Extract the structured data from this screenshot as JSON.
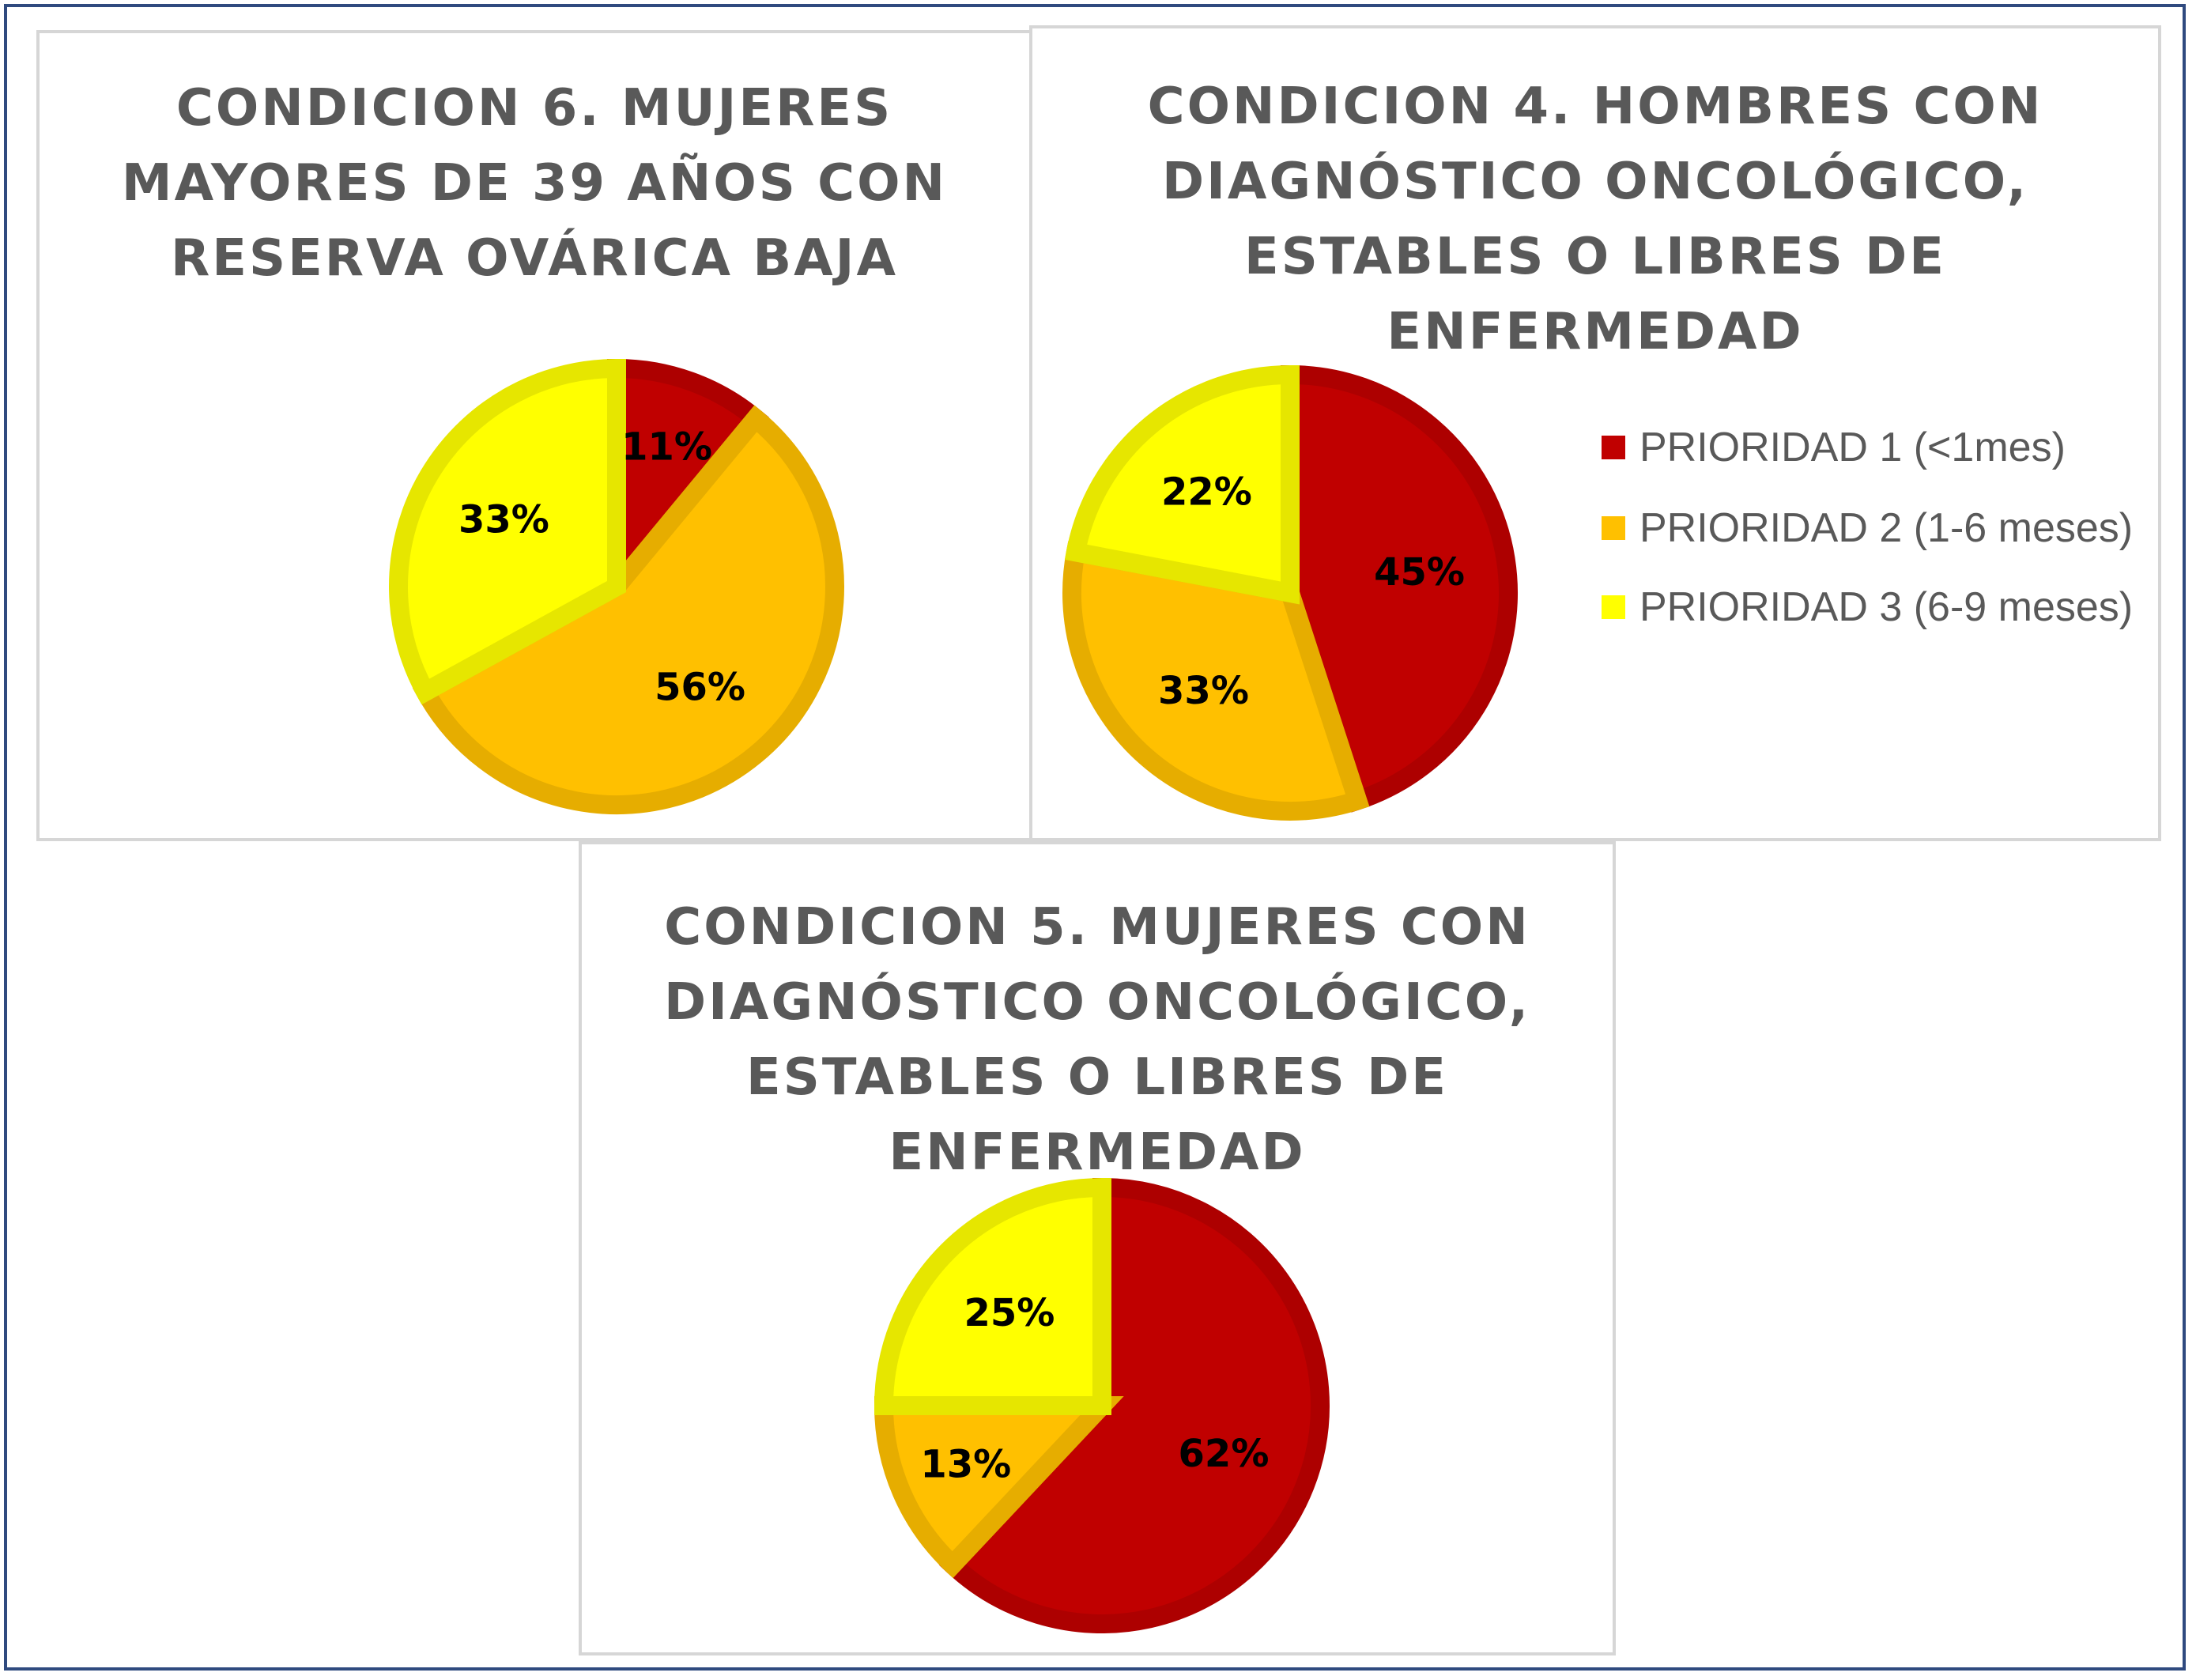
{
  "colors": {
    "prioridad_1": "#c00000",
    "prioridad_2": "#ffc000",
    "prioridad_3": "#ffff00",
    "frame": "#2f4a7f",
    "panel_border": "#d6d6d6",
    "title": "#595959",
    "data_label": "#000000"
  },
  "legend": {
    "items": [
      {
        "label": "PRIORIDAD 1 (<1mes)",
        "color": "#c00000"
      },
      {
        "label": "PRIORIDAD 2 (1-6 meses)",
        "color": "#ffc000"
      },
      {
        "label": "PRIORIDAD 3 (6-9 meses)",
        "color": "#ffff00"
      }
    ]
  },
  "chart_data": [
    {
      "type": "pie",
      "title": "CONDICION 6. MUJERES MAYORES DE 39 AÑOS CON RESERVA OVÁRICA BAJA",
      "categories": [
        "PRIORIDAD 1 (<1mes)",
        "PRIORIDAD 2 (1-6 meses)",
        "PRIORIDAD 3 (6-9 meses)"
      ],
      "values": [
        11,
        56,
        33
      ],
      "data_labels": [
        "11%",
        "56%",
        "33%"
      ],
      "legend": "none"
    },
    {
      "type": "pie",
      "title": "CONDICION 4. HOMBRES CON DIAGNÓSTICO ONCOLÓGICO, ESTABLES O LIBRES DE ENFERMEDAD",
      "categories": [
        "PRIORIDAD 1 (<1mes)",
        "PRIORIDAD 2 (1-6 meses)",
        "PRIORIDAD 3 (6-9 meses)"
      ],
      "values": [
        45,
        33,
        22
      ],
      "data_labels": [
        "45%",
        "33%",
        "22%"
      ],
      "legend": "right"
    },
    {
      "type": "pie",
      "title": "CONDICION 5. MUJERES CON DIAGNÓSTICO ONCOLÓGICO, ESTABLES O LIBRES DE ENFERMEDAD",
      "categories": [
        "PRIORIDAD 1 (<1mes)",
        "PRIORIDAD 2 (1-6 meses)",
        "PRIORIDAD 3 (6-9 meses)"
      ],
      "values": [
        62,
        13,
        25
      ],
      "data_labels": [
        "62%",
        "13%",
        "25%"
      ],
      "legend": "none"
    }
  ]
}
